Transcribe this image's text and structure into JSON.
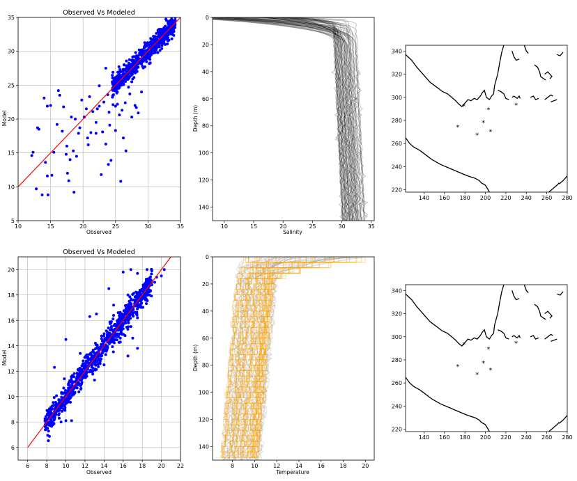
{
  "colors": {
    "scatter": "#0000ff",
    "fit_line": "#ff0000",
    "salinity_profiles": "#000000",
    "temp_model_profiles": "#808080",
    "temp_obs_profiles": "#ffa500",
    "stations": "#008080",
    "coast": "#000000",
    "grid": "#b0b0b0"
  },
  "chart_data": [
    {
      "id": "sal-scatter",
      "type": "scatter",
      "title": "Observed Vs Modeled",
      "xlabel": "Observed",
      "ylabel": "Model",
      "xlim": [
        10,
        35
      ],
      "ylim": [
        5,
        35
      ],
      "xticks": [
        "10",
        "15",
        "20",
        "25",
        "30",
        "35"
      ],
      "yticks": [
        "5",
        "10",
        "15",
        "20",
        "25",
        "30",
        "35"
      ],
      "grid": true,
      "one_to_one_line": [
        [
          10,
          10
        ],
        [
          35,
          35
        ]
      ],
      "points": [
        [
          12.1,
          14.6
        ],
        [
          12.3,
          15.1
        ],
        [
          13.0,
          18.7
        ],
        [
          13.2,
          18.5
        ],
        [
          14.0,
          23.1
        ],
        [
          14.5,
          21.9
        ],
        [
          15.0,
          22.0
        ],
        [
          14.2,
          13.6
        ],
        [
          14.5,
          11.6
        ],
        [
          15.2,
          11.7
        ],
        [
          14.6,
          8.8
        ],
        [
          13.7,
          8.8
        ],
        [
          12.8,
          9.7
        ],
        [
          15.5,
          15.1
        ],
        [
          16.0,
          19.2
        ],
        [
          16.4,
          23.5
        ],
        [
          16.2,
          24.2
        ],
        [
          17.0,
          21.8
        ],
        [
          16.8,
          18.2
        ],
        [
          17.5,
          16.0
        ],
        [
          17.4,
          14.8
        ],
        [
          17.6,
          12.0
        ],
        [
          17.8,
          10.9
        ],
        [
          18.0,
          14.0
        ],
        [
          18.5,
          15.3
        ],
        [
          18.2,
          20.3
        ],
        [
          18.8,
          20.0
        ],
        [
          18.6,
          9.2
        ],
        [
          19.0,
          14.5
        ],
        [
          19.5,
          18.7
        ],
        [
          19.8,
          22.8
        ],
        [
          20.2,
          20.3
        ],
        [
          20.5,
          21.5
        ],
        [
          20.8,
          16.2
        ],
        [
          21.0,
          23.3
        ],
        [
          21.5,
          21.1
        ],
        [
          21.2,
          18.0
        ],
        [
          22.0,
          19.5
        ],
        [
          22.2,
          21.5
        ],
        [
          22.0,
          17.9
        ],
        [
          22.5,
          24.9
        ],
        [
          22.5,
          21.9
        ],
        [
          23.0,
          18.1
        ],
        [
          23.2,
          22.5
        ],
        [
          23.5,
          16.3
        ],
        [
          23.8,
          23.6
        ],
        [
          23.5,
          27.5
        ],
        [
          24.0,
          21.0
        ],
        [
          24.1,
          19.1
        ],
        [
          24.3,
          13.9
        ],
        [
          24.5,
          25.5
        ],
        [
          24.6,
          26.9
        ],
        [
          25.0,
          21.9
        ],
        [
          25.0,
          18.3
        ],
        [
          25.2,
          24.5
        ],
        [
          25.3,
          22.2
        ],
        [
          25.4,
          26.2
        ],
        [
          25.6,
          20.6
        ],
        [
          25.8,
          10.8
        ],
        [
          26.0,
          25.3
        ],
        [
          26.0,
          21.3
        ],
        [
          26.2,
          17.2
        ],
        [
          26.5,
          22.4
        ],
        [
          26.6,
          15.3
        ],
        [
          27.0,
          24.7
        ],
        [
          27.2,
          23.7
        ],
        [
          27.5,
          20.3
        ],
        [
          27.0,
          27.0
        ],
        [
          27.5,
          25.5
        ],
        [
          28.0,
          22.0
        ],
        [
          28.2,
          21.7
        ],
        [
          28.5,
          20.9
        ],
        [
          29.0,
          24.0
        ],
        [
          22.8,
          11.8
        ],
        [
          23.9,
          13.3
        ],
        [
          19.3,
          17.9
        ],
        [
          20.7,
          17.2
        ]
      ],
      "dense_band": {
        "x_range": [
          24.5,
          34.2
        ],
        "spread": 1.3,
        "n": 700
      }
    },
    {
      "id": "sal-profile",
      "type": "line",
      "xlabel": "Salinity",
      "ylabel": "Depth (m)",
      "xlim": [
        8,
        35.5
      ],
      "ylim": [
        150,
        0
      ],
      "xticks": [
        "10",
        "15",
        "20",
        "25",
        "30",
        "35"
      ],
      "yticks": [
        "0",
        "20",
        "40",
        "60",
        "80",
        "100",
        "120",
        "140"
      ],
      "grid": false,
      "profiles": {
        "count": 60,
        "surface_salinity_range": [
          0.5,
          25
        ],
        "deep_salinity_range": [
          30,
          34
        ],
        "mixed_layer_depth_m": [
          2,
          25
        ]
      }
    },
    {
      "id": "sal-map",
      "type": "scatter",
      "xlim": [
        122,
        280
      ],
      "ylim": [
        218,
        345
      ],
      "xticks": [
        "140",
        "160",
        "180",
        "200",
        "220",
        "240",
        "260",
        "280"
      ],
      "yticks": [
        "220",
        "240",
        "260",
        "280",
        "300",
        "320",
        "340"
      ],
      "stations": [
        [
          179,
          292
        ],
        [
          203,
          289
        ],
        [
          230,
          293
        ],
        [
          198,
          278
        ],
        [
          173,
          274
        ],
        [
          205,
          270
        ],
        [
          192,
          267
        ]
      ]
    },
    {
      "id": "temp-scatter",
      "type": "scatter",
      "title": "Observed Vs Modeled",
      "xlabel": "Observed",
      "ylabel": "Model",
      "xlim": [
        5,
        22
      ],
      "ylim": [
        5,
        21
      ],
      "xticks": [
        "6",
        "8",
        "10",
        "12",
        "14",
        "16",
        "18",
        "20",
        "22"
      ],
      "yticks": [
        "6",
        "8",
        "10",
        "12",
        "14",
        "16",
        "18",
        "20"
      ],
      "grid": true,
      "one_to_one_line": [
        [
          6,
          6
        ],
        [
          21,
          21
        ]
      ],
      "points": [
        [
          16.0,
          19.8
        ],
        [
          16.8,
          20.0
        ],
        [
          17.5,
          19.7
        ],
        [
          18.5,
          20.0
        ],
        [
          19.0,
          19.9
        ],
        [
          19.5,
          19.4
        ],
        [
          20.0,
          19.5
        ],
        [
          16.5,
          18.0
        ],
        [
          17.2,
          17.2
        ],
        [
          18.0,
          17.7
        ],
        [
          18.3,
          18.5
        ],
        [
          19.0,
          18.8
        ],
        [
          15.0,
          17.2
        ],
        [
          14.5,
          18.5
        ],
        [
          12.5,
          16.3
        ],
        [
          13.2,
          16.5
        ],
        [
          15.5,
          15.6
        ],
        [
          16.2,
          14.8
        ],
        [
          17.0,
          14.6
        ],
        [
          16.5,
          13.2
        ],
        [
          17.5,
          13.8
        ],
        [
          14.0,
          12.5
        ],
        [
          13.0,
          11.3
        ],
        [
          11.5,
          13.4
        ],
        [
          10.0,
          14.5
        ],
        [
          8.8,
          12.3
        ],
        [
          15.0,
          16.4
        ],
        [
          19.3,
          19.0
        ],
        [
          20.3,
          20.0
        ],
        [
          8.1,
          7.8
        ],
        [
          8.5,
          7.9
        ],
        [
          9.5,
          8.0
        ],
        [
          10.0,
          8.1
        ],
        [
          10.6,
          8.1
        ]
      ],
      "dense_band": {
        "x_range": [
          7.8,
          19.0
        ],
        "spread": 0.9,
        "n": 900
      }
    },
    {
      "id": "temp-profile",
      "type": "line",
      "xlabel": "Temperature",
      "ylabel": "Depth (m)",
      "xlim": [
        6.2,
        20.8
      ],
      "ylim": [
        150,
        0
      ],
      "xticks": [
        "8",
        "10",
        "12",
        "14",
        "16",
        "18",
        "20"
      ],
      "yticks": [
        "0",
        "20",
        "40",
        "60",
        "80",
        "100",
        "120",
        "140"
      ],
      "grid": false,
      "profiles": {
        "count_model": 40,
        "count_obs": 40,
        "surface_temp_range": [
          9,
          20
        ],
        "deep_temp_range": [
          7,
          10.5
        ]
      }
    },
    {
      "id": "temp-map",
      "type": "scatter",
      "xlim": [
        122,
        280
      ],
      "ylim": [
        218,
        345
      ],
      "xticks": [
        "140",
        "160",
        "180",
        "200",
        "220",
        "240",
        "260",
        "280"
      ],
      "yticks": [
        "220",
        "240",
        "260",
        "280",
        "300",
        "320",
        "340"
      ],
      "stations": [
        [
          179,
          293
        ],
        [
          203,
          289
        ],
        [
          230,
          294
        ],
        [
          198,
          277
        ],
        [
          173,
          274
        ],
        [
          205,
          271
        ],
        [
          192,
          267
        ]
      ]
    }
  ]
}
